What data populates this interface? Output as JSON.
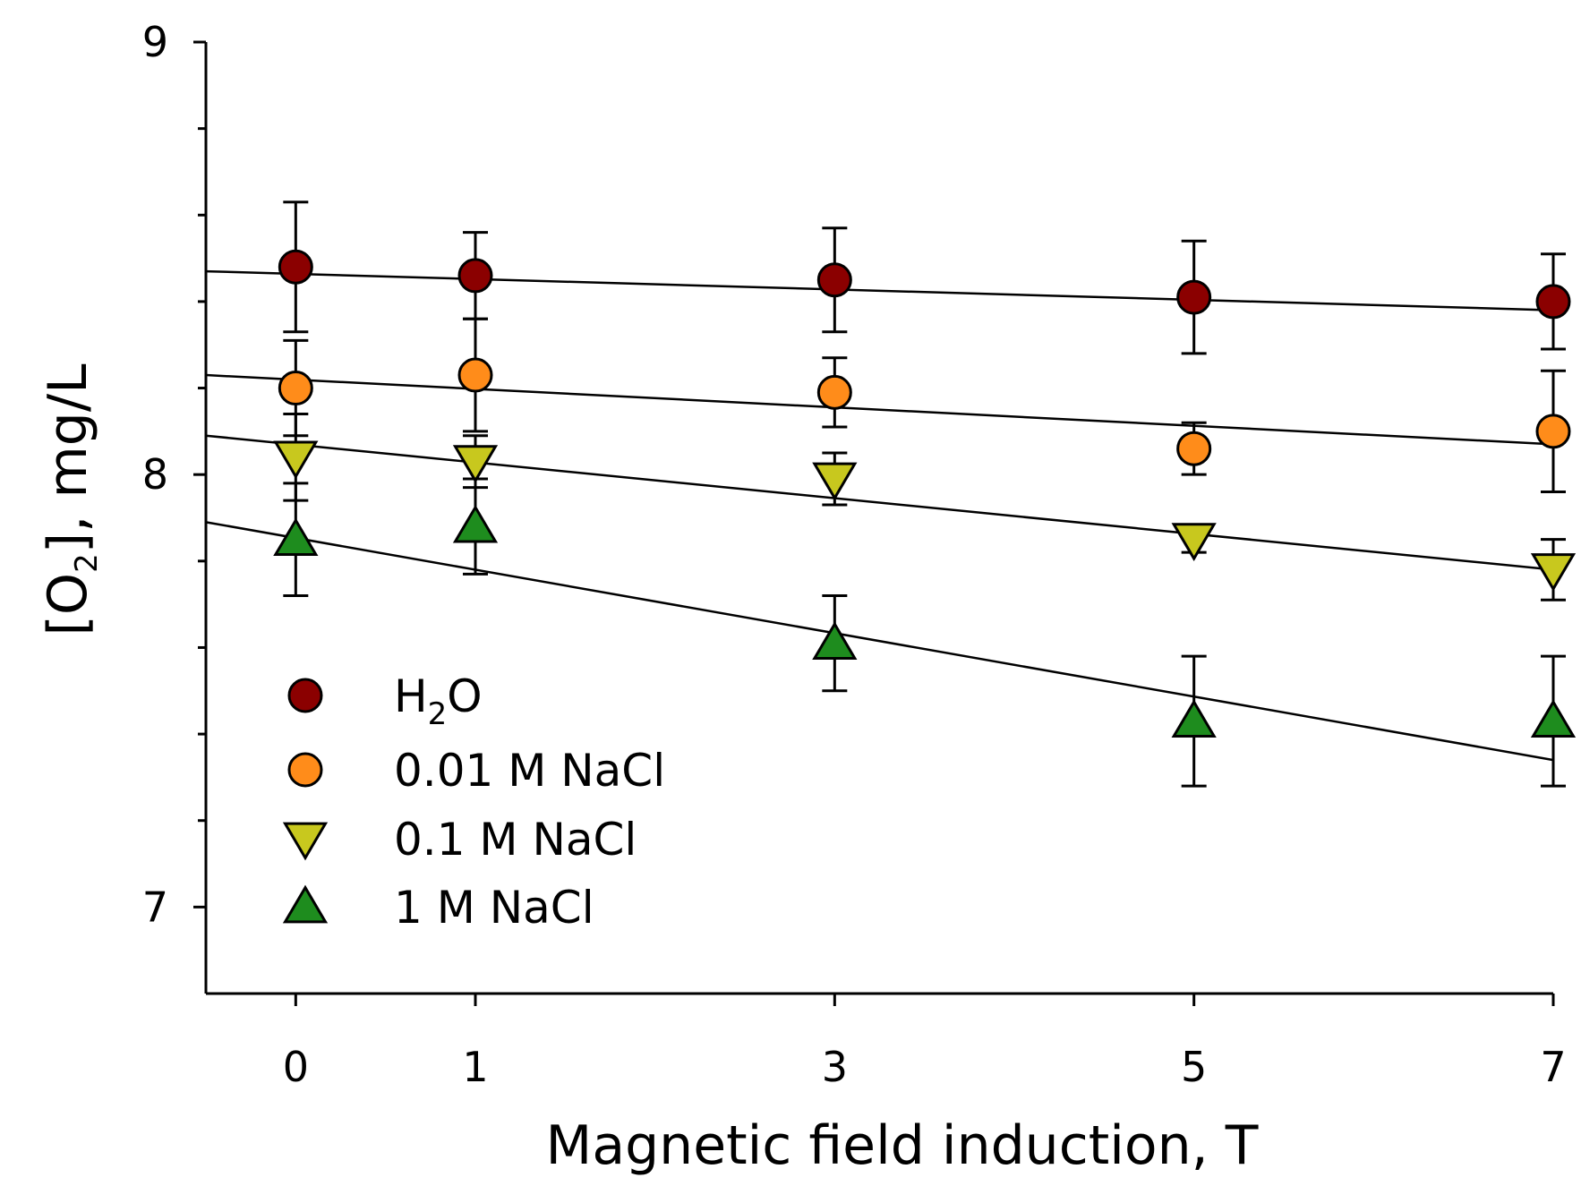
{
  "chart_data": {
    "type": "scatter",
    "xlabel": "Magnetic field induction, T",
    "ylabel": {
      "pre": "[O",
      "sub": "2",
      "post": "], mg/L"
    },
    "xlim": [
      -0.5,
      7
    ],
    "ylim": [
      6.8,
      9
    ],
    "xticks": [
      0,
      1,
      3,
      5,
      7
    ],
    "yticks": [
      7,
      8,
      9
    ],
    "grid": false,
    "legend_position": "lower-left",
    "series": [
      {
        "name": "H2O",
        "name_pre": "H",
        "name_sub": "2",
        "name_post": "O",
        "marker": "circle",
        "color": "#8B0000",
        "x": [
          0,
          1,
          3,
          5,
          7
        ],
        "y": [
          8.48,
          8.46,
          8.45,
          8.41,
          8.4
        ],
        "err": [
          0.15,
          0.1,
          0.12,
          0.13,
          0.11
        ],
        "fit": {
          "x": [
            -0.5,
            7
          ],
          "y": [
            8.47,
            8.38
          ]
        }
      },
      {
        "name": "0.01 M NaCl",
        "marker": "circle",
        "color": "#FF8C1A",
        "x": [
          0,
          1,
          3,
          5,
          7
        ],
        "y": [
          8.2,
          8.23,
          8.19,
          8.06,
          8.1
        ],
        "err": [
          0.11,
          0.13,
          0.08,
          0.06,
          0.14
        ],
        "fit": {
          "x": [
            -0.5,
            7
          ],
          "y": [
            8.23,
            8.07
          ]
        }
      },
      {
        "name": "0.1 M NaCl",
        "marker": "triangle-down",
        "color": "#C8C81E",
        "x": [
          0,
          1,
          3,
          5,
          7
        ],
        "y": [
          8.04,
          8.03,
          7.99,
          7.85,
          7.78
        ],
        "err": [
          0.1,
          0.06,
          0.06,
          0.03,
          0.07
        ],
        "fit": {
          "x": [
            -0.5,
            7
          ],
          "y": [
            8.09,
            7.78
          ]
        }
      },
      {
        "name": "1 M NaCl",
        "marker": "triangle-up",
        "color": "#1E8C1E",
        "x": [
          0,
          1,
          3,
          5,
          7
        ],
        "y": [
          7.85,
          7.88,
          7.61,
          7.43,
          7.43
        ],
        "err": [
          0.13,
          0.11,
          0.11,
          0.15,
          0.15
        ],
        "fit": {
          "x": [
            -0.5,
            7
          ],
          "y": [
            7.89,
            7.34
          ]
        }
      }
    ]
  }
}
